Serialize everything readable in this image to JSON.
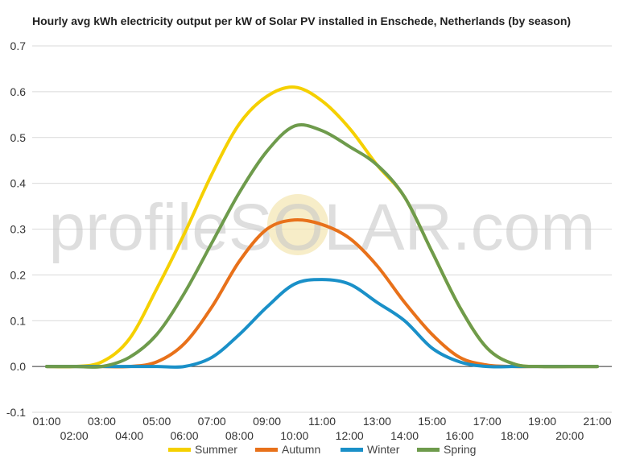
{
  "chart_data": {
    "type": "line",
    "title": "Hourly avg kWh electricity output per kW of Solar PV installed in Enschede, Netherlands (by season)",
    "xlabel": "",
    "ylabel": "",
    "ylim": [
      -0.1,
      0.7
    ],
    "yticks": [
      "-0.1",
      "0.0",
      "0.1",
      "0.2",
      "0.3",
      "0.4",
      "0.5",
      "0.6",
      "0.7"
    ],
    "x": [
      "01:00",
      "02:00",
      "03:00",
      "04:00",
      "05:00",
      "06:00",
      "07:00",
      "08:00",
      "09:00",
      "10:00",
      "11:00",
      "12:00",
      "13:00",
      "14:00",
      "15:00",
      "16:00",
      "17:00",
      "18:00",
      "19:00",
      "20:00",
      "21:00"
    ],
    "grid": true,
    "legend_position": "bottom",
    "series": [
      {
        "name": "Summer",
        "color": "#f5d000",
        "values": [
          0,
          0,
          0.01,
          0.06,
          0.17,
          0.29,
          0.42,
          0.53,
          0.59,
          0.61,
          0.58,
          0.52,
          0.44,
          0.37,
          0.25,
          0.13,
          0.04,
          0.005,
          0,
          0,
          0
        ]
      },
      {
        "name": "Autumn",
        "color": "#e8711a",
        "values": [
          0,
          0,
          0,
          0,
          0.01,
          0.05,
          0.13,
          0.23,
          0.3,
          0.32,
          0.31,
          0.28,
          0.22,
          0.14,
          0.07,
          0.02,
          0.003,
          0,
          0,
          0,
          0
        ]
      },
      {
        "name": "Winter",
        "color": "#1a90c8",
        "values": [
          0,
          0,
          0,
          0,
          0,
          0,
          0.02,
          0.07,
          0.13,
          0.18,
          0.19,
          0.18,
          0.14,
          0.1,
          0.04,
          0.01,
          0,
          0,
          0,
          0,
          0
        ]
      },
      {
        "name": "Spring",
        "color": "#6e9b4c",
        "values": [
          0,
          0,
          0,
          0.02,
          0.07,
          0.16,
          0.27,
          0.38,
          0.47,
          0.525,
          0.515,
          0.48,
          0.44,
          0.37,
          0.25,
          0.13,
          0.04,
          0.005,
          0,
          0,
          0
        ]
      }
    ]
  },
  "watermark": {
    "text": "profileSOLAR.com",
    "sun_color": "#f3e6b0"
  }
}
